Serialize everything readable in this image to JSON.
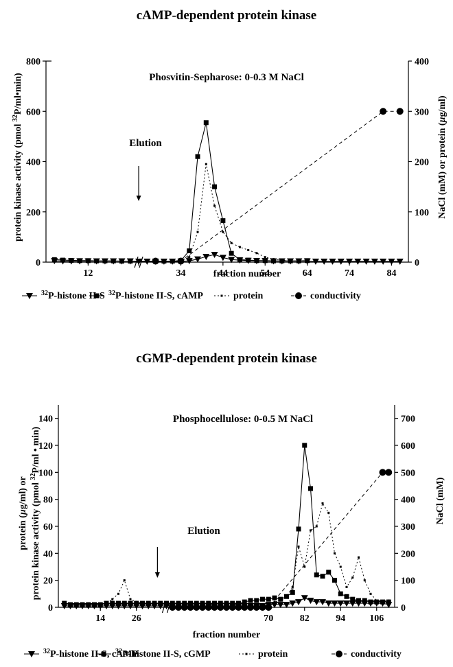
{
  "chart_data": [
    {
      "type": "line",
      "title": "cAMP-dependent protein kinase",
      "annotation": "Phosvitin-Sepharose: 0-0.3 M NaCl",
      "elution_label": "Elution",
      "xlabel": "fraction number",
      "ylabel": "protein kinase activity (pmol 32P/ml•min)",
      "ylabel_parts": [
        "protein kinase activity (pmol ",
        "32",
        "P/ml•min)"
      ],
      "y2label": "NaCl (mM) or protein (µg/ml)",
      "y2label_parts": [
        "NaCl (mM) or protein (",
        "µ",
        "g/ml)"
      ],
      "xlim": [
        2,
        88
      ],
      "ylim": [
        0,
        800
      ],
      "y2lim": [
        0,
        400
      ],
      "x_ticks": [
        12,
        24,
        34,
        44,
        54,
        64,
        74,
        84
      ],
      "x_tick_labels": [
        "12",
        "",
        "34",
        "44",
        "54",
        "64",
        "74",
        "84"
      ],
      "y_ticks": [
        0,
        200,
        400,
        600,
        800
      ],
      "y2_ticks": [
        0,
        100,
        200,
        300,
        400
      ],
      "axis_break_at": 24,
      "elution_at": 24,
      "legend_placement": "bottom",
      "series": [
        {
          "name": "32P-histone II-S",
          "axis": "left",
          "marker": "triangle",
          "line": "solid",
          "x": [
            4,
            6,
            8,
            10,
            12,
            14,
            16,
            18,
            20,
            22,
            24,
            26,
            28,
            30,
            32,
            34,
            36,
            38,
            40,
            42,
            44,
            46,
            48,
            50,
            52,
            54,
            56,
            58,
            60,
            62,
            64,
            66,
            68,
            70,
            72,
            74,
            76,
            78,
            80,
            82,
            84,
            86
          ],
          "y": [
            5,
            4,
            4,
            4,
            4,
            4,
            4,
            4,
            4,
            4,
            3,
            3,
            3,
            3,
            3,
            3,
            5,
            12,
            22,
            30,
            18,
            10,
            8,
            6,
            5,
            5,
            4,
            4,
            4,
            4,
            4,
            3,
            3,
            3,
            3,
            3,
            3,
            3,
            3,
            3,
            3,
            3
          ]
        },
        {
          "name": "32P-histone II-S, cAMP",
          "axis": "left",
          "marker": "square",
          "line": "solid",
          "x": [
            4,
            6,
            8,
            10,
            12,
            14,
            16,
            18,
            20,
            22,
            30,
            32,
            34,
            36,
            38,
            40,
            42,
            44,
            46,
            48,
            50,
            52,
            54,
            56,
            58,
            60,
            62,
            64
          ],
          "y": [
            10,
            8,
            7,
            6,
            6,
            5,
            5,
            5,
            4,
            4,
            4,
            4,
            6,
            45,
            420,
            555,
            300,
            165,
            35,
            10,
            8,
            6,
            6,
            5,
            5,
            5,
            5,
            6
          ]
        },
        {
          "name": "protein",
          "axis": "right",
          "marker": "dot",
          "line": "dotted",
          "x": [
            34,
            36,
            38,
            40,
            42,
            44,
            46,
            48,
            50,
            52,
            54,
            56,
            58,
            60
          ],
          "y": [
            3,
            10,
            60,
            195,
            112,
            60,
            38,
            30,
            24,
            18,
            10,
            6,
            4,
            2
          ]
        },
        {
          "name": "conductivity",
          "axis": "right",
          "marker": "circle",
          "line": "dashed",
          "x": [
            28,
            34,
            82,
            86
          ],
          "y": [
            2,
            2,
            300,
            300
          ]
        }
      ],
      "legend": [
        {
          "label": "32P-histone II-S",
          "sup": "32",
          "rest": "P-histone II-S"
        },
        {
          "label": "32P-histone II-S, cAMP",
          "sup": "32",
          "rest": "P-histone II-S, cAMP"
        },
        {
          "label": "protein",
          "sup": "",
          "rest": "protein"
        },
        {
          "label": "conductivity",
          "sup": "",
          "rest": "conductivity"
        }
      ]
    },
    {
      "type": "line",
      "title": "cGMP-dependent protein kinase",
      "annotation": "Phosphocellulose: 0-0.5 M NaCl",
      "elution_label": "Elution",
      "xlabel": "fraction number",
      "ylabel_line1": "protein (µg/ml) or",
      "ylabel_line1_parts": [
        "protein (",
        "µ",
        "g/ml) or"
      ],
      "ylabel_line2": "protein kinase activity (pmol 32P/ml • min)",
      "ylabel_line2_parts": [
        "protein kinase activity (pmol ",
        "32",
        "P/ml • min)"
      ],
      "y2label": "NaCl (mM)",
      "xlim": [
        0,
        112
      ],
      "ylim": [
        0,
        150
      ],
      "y2lim": [
        0,
        750
      ],
      "x_ticks": [
        14,
        26,
        70,
        82,
        94,
        106
      ],
      "x_tick_labels": [
        "14",
        "26",
        "70",
        "82",
        "94",
        "106"
      ],
      "y_ticks": [
        0,
        20,
        40,
        60,
        80,
        100,
        120,
        140
      ],
      "y2_ticks": [
        0,
        100,
        200,
        300,
        400,
        500,
        600,
        700
      ],
      "axis_break_at": 36,
      "elution_at": 33,
      "legend_placement": "bottom",
      "series": [
        {
          "name": "32P-histone II-S, cAMP",
          "axis": "left",
          "marker": "triangle",
          "line": "solid",
          "x": [
            2,
            4,
            6,
            8,
            10,
            12,
            14,
            16,
            18,
            20,
            22,
            24,
            26,
            28,
            30,
            32,
            34,
            36,
            38,
            40,
            42,
            44,
            46,
            48,
            50,
            52,
            54,
            56,
            58,
            60,
            62,
            64,
            66,
            68,
            70,
            72,
            74,
            76,
            78,
            80,
            82,
            84,
            86,
            88,
            90,
            92,
            94,
            96,
            98,
            100,
            102,
            104,
            106,
            108,
            110
          ],
          "y": [
            1,
            1,
            1,
            1,
            1,
            1,
            1,
            1,
            1,
            1,
            1,
            1,
            1,
            1,
            1,
            1,
            1,
            1,
            1,
            1,
            1,
            1,
            1,
            1,
            1,
            1,
            1,
            1,
            1,
            1,
            1,
            1,
            1,
            1,
            2,
            2,
            2,
            2,
            3,
            4,
            7,
            5,
            4,
            4,
            3,
            3,
            3,
            3,
            3,
            3,
            3,
            3,
            3,
            3,
            2
          ]
        },
        {
          "name": "32P-histone II-S, cGMP",
          "axis": "left",
          "marker": "square",
          "line": "solid",
          "x": [
            2,
            4,
            6,
            8,
            10,
            12,
            14,
            16,
            18,
            20,
            22,
            24,
            26,
            28,
            30,
            32,
            34,
            36,
            38,
            40,
            42,
            44,
            46,
            48,
            50,
            52,
            54,
            56,
            58,
            60,
            62,
            64,
            66,
            68,
            70,
            72,
            74,
            76,
            78,
            80,
            82,
            84,
            86,
            88,
            90,
            92,
            94,
            96,
            98,
            100,
            102,
            104,
            106,
            108,
            110
          ],
          "y": [
            3,
            2,
            2,
            2,
            2,
            2,
            2,
            3,
            3,
            3,
            3,
            3,
            3,
            3,
            3,
            3,
            3,
            3,
            3,
            3,
            3,
            3,
            3,
            3,
            3,
            3,
            3,
            3,
            3,
            3,
            4,
            5,
            5,
            6,
            6,
            7,
            6,
            8,
            11,
            58,
            120,
            88,
            24,
            23,
            26,
            20,
            10,
            8,
            6,
            5,
            5,
            4,
            4,
            4,
            4
          ]
        },
        {
          "name": "protein",
          "axis": "left",
          "marker": "dot",
          "line": "dotted",
          "x": [
            14,
            16,
            18,
            20,
            22,
            24,
            26,
            28,
            30,
            32,
            34,
            36,
            38,
            40,
            42,
            44,
            46,
            48,
            50,
            52,
            54,
            56,
            58,
            60,
            62,
            64,
            66,
            68,
            70,
            72,
            74,
            76,
            78,
            80,
            82,
            84,
            86,
            88,
            90,
            92,
            94,
            96,
            98,
            100,
            102,
            104,
            106,
            108,
            110
          ],
          "y": [
            2,
            3,
            6,
            10,
            20,
            6,
            4,
            3,
            3,
            3,
            3,
            2,
            2,
            2,
            2,
            2,
            2,
            2,
            2,
            2,
            2,
            2,
            2,
            2,
            2,
            2,
            2,
            2,
            3,
            4,
            5,
            8,
            15,
            45,
            30,
            57,
            60,
            77,
            70,
            40,
            30,
            15,
            22,
            37,
            20,
            10,
            5,
            4,
            5
          ]
        },
        {
          "name": "conductivity",
          "axis": "right",
          "marker": "circle",
          "line": "dashed",
          "x": [
            38,
            40,
            42,
            44,
            46,
            48,
            50,
            52,
            54,
            56,
            58,
            60,
            62,
            64,
            66,
            68,
            70,
            108,
            110
          ],
          "y": [
            0,
            0,
            0,
            0,
            0,
            0,
            0,
            0,
            0,
            0,
            0,
            0,
            0,
            0,
            0,
            0,
            0,
            500,
            500
          ]
        }
      ],
      "legend": [
        {
          "label": "32P-histone II-S, cAMP",
          "sup": "32",
          "rest": "P-histone II-S, cAMP"
        },
        {
          "label": "32P-histone II-S, cGMP",
          "sup": "32",
          "rest": "P-histone II-S, cGMP"
        },
        {
          "label": "protein",
          "sup": "",
          "rest": "protein"
        },
        {
          "label": "conductivity",
          "sup": "",
          "rest": "conductivity"
        }
      ]
    }
  ]
}
